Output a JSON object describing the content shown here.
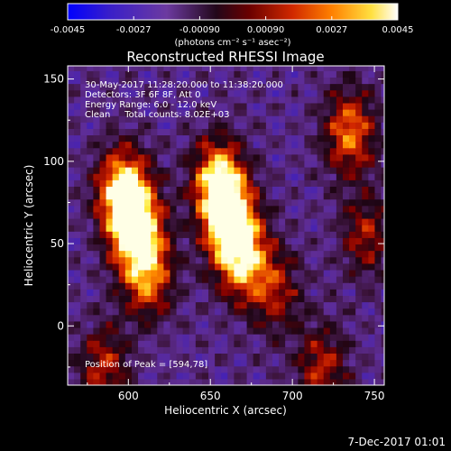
{
  "chart_data": {
    "type": "heatmap",
    "title": "Reconstructed RHESSI Image",
    "xlabel": "Heliocentric X (arcsec)",
    "ylabel": "Heliocentric Y (arcsec)",
    "xlim": [
      563,
      756
    ],
    "ylim": [
      -36,
      158
    ],
    "xticks": [
      600,
      650,
      700,
      750
    ],
    "yticks": [
      0,
      50,
      100,
      150
    ],
    "colorbar": {
      "range": [
        -0.0045,
        0.0045
      ],
      "ticks": [
        "-0.0045",
        "-0.0027",
        "-0.00090",
        "0.00090",
        "0.0027",
        "0.0045"
      ],
      "units": "(photons cm⁻² s⁻¹ asec⁻²)",
      "colors": [
        "#0000ff",
        "#3a1fc8",
        "#6c3aa0",
        "#22071a",
        "#9a0000",
        "#e04000",
        "#ffa000",
        "#ffff60",
        "#ffffff"
      ]
    },
    "annotations": [
      "30-May-2017 11:28:20.000 to 11:38:20.000",
      "Detectors: 3F 6F 8F, Att 0",
      "Energy Range: 6.0 - 12.0 keV",
      "Clean     Total counts: 8.02E+03"
    ],
    "peak_label": "Position of Peak = [594,78]",
    "sources": [
      {
        "x": 597,
        "y": 82,
        "peak": 1.0
      },
      {
        "x": 605,
        "y": 58,
        "peak": 0.9
      },
      {
        "x": 612,
        "y": 30,
        "peak": 0.65
      },
      {
        "x": 585,
        "y": -25,
        "peak": 0.5
      },
      {
        "x": 655,
        "y": 88,
        "peak": 0.95
      },
      {
        "x": 662,
        "y": 62,
        "peak": 0.9
      },
      {
        "x": 670,
        "y": 40,
        "peak": 0.7
      },
      {
        "x": 690,
        "y": 22,
        "peak": 0.45
      },
      {
        "x": 735,
        "y": 118,
        "peak": 0.7
      },
      {
        "x": 745,
        "y": 55,
        "peak": 0.45
      },
      {
        "x": 718,
        "y": -25,
        "peak": 0.5
      }
    ]
  },
  "footer": {
    "date": "7-Dec-2017 01:01"
  }
}
